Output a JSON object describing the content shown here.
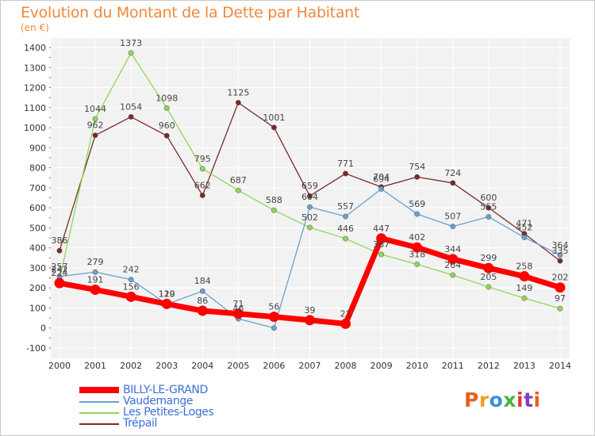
{
  "header": {
    "title": "Evolution du Montant de la Dette par Habitant",
    "unit": "(en €)"
  },
  "logo": {
    "text": "Proxiti",
    "colors": [
      "#e85f1e",
      "#f0a020",
      "#3b8fd8",
      "#49b33f",
      "#d93b3b",
      "#7d3fbf",
      "#e85f1e"
    ]
  },
  "chart_data": {
    "type": "line",
    "categories": [
      "2000",
      "2001",
      "2002",
      "2003",
      "2004",
      "2005",
      "2006",
      "2007",
      "2008",
      "2009",
      "2010",
      "2011",
      "2012",
      "2013",
      "2014"
    ],
    "y_ticks": [
      "-100",
      "0",
      "100",
      "200",
      "300",
      "400",
      "500",
      "600",
      "700",
      "800",
      "900",
      "1000",
      "1100",
      "1200",
      "1300",
      "1400"
    ],
    "ylim": [
      -100,
      1450
    ],
    "grid": true,
    "legend_position": "bottom-left",
    "series": [
      {
        "name": "Trépail",
        "color": "#7a2a2a",
        "thick": false,
        "values": [
          386,
          962,
          1054,
          960,
          662,
          1125,
          1001,
          659,
          771,
          704,
          754,
          724,
          600,
          471,
          335
        ],
        "labels": [
          "386",
          "962",
          "1054",
          "960",
          "662",
          "1125",
          "1001",
          "659",
          "771",
          "704",
          "754",
          "724",
          "600",
          "471",
          "335"
        ]
      },
      {
        "name": "Les Petites-Loges",
        "color": "#8fd65a",
        "thick": false,
        "values": [
          242,
          1044,
          1373,
          1098,
          795,
          687,
          588,
          502,
          446,
          367,
          318,
          264,
          205,
          149,
          97
        ],
        "labels": [
          "242",
          "1044",
          "1373",
          "1098",
          "795",
          "687",
          "588",
          "502",
          "446",
          "367",
          "318",
          "264",
          "205",
          "149",
          "97"
        ]
      },
      {
        "name": "Vaudemange",
        "color": "#6aa0d0",
        "thick": false,
        "values": [
          257,
          279,
          242,
          119,
          184,
          46,
          0,
          604,
          557,
          694,
          569,
          507,
          555,
          452,
          364
        ],
        "labels": [
          "257",
          "279",
          "242",
          "119",
          "184",
          "46",
          "",
          "604",
          "557",
          "694",
          "569",
          "507",
          "555",
          "452",
          "364"
        ]
      },
      {
        "name": "BILLY-LE-GRAND",
        "color": "#ff0000",
        "thick": true,
        "values": [
          224,
          191,
          156,
          120,
          86,
          71,
          56,
          39,
          21,
          447,
          402,
          344,
          299,
          258,
          202
        ],
        "labels": [
          "224",
          "191",
          "156",
          "120",
          "86",
          "71",
          "56",
          "39",
          "21",
          "447",
          "402",
          "344",
          "299",
          "258",
          "202"
        ]
      }
    ]
  },
  "legend": [
    {
      "label": "BILLY-LE-GRAND",
      "color": "#ff0000",
      "thick": true
    },
    {
      "label": "Vaudemange",
      "color": "#6aa0d0",
      "thick": false
    },
    {
      "label": "Les Petites-Loges",
      "color": "#8fd65a",
      "thick": false
    },
    {
      "label": "Trépail",
      "color": "#7a2a2a",
      "thick": false
    }
  ]
}
